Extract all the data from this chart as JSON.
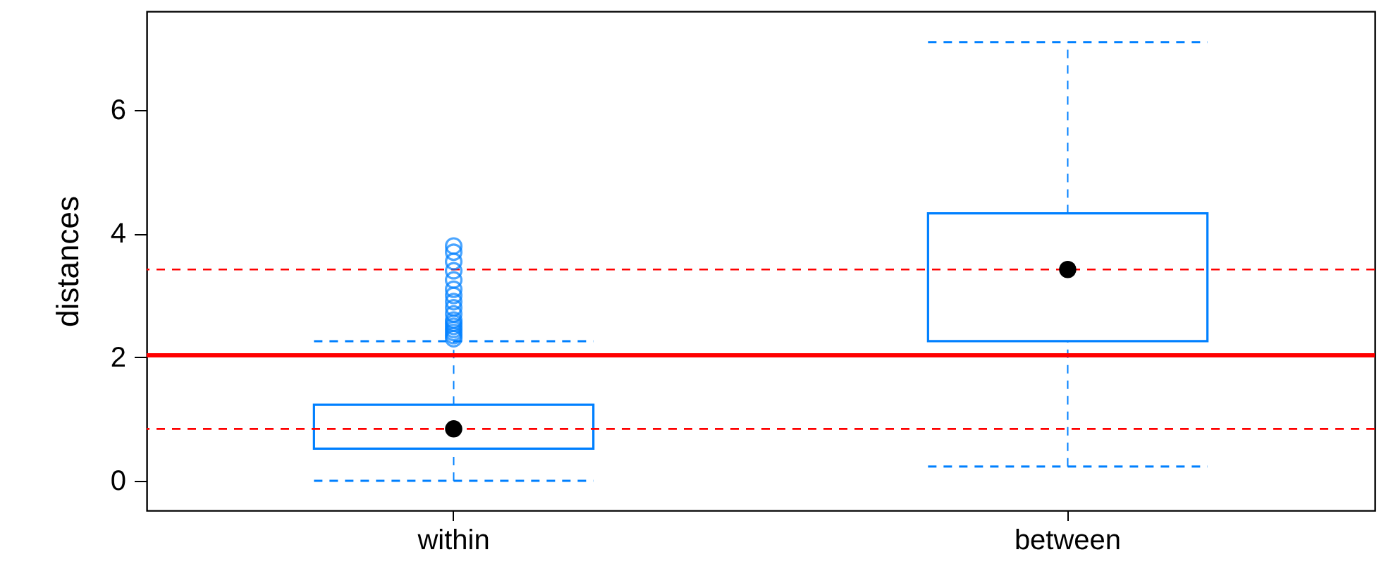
{
  "chart_data": {
    "type": "box",
    "ylabel": "distances",
    "categories": [
      "within",
      "between"
    ],
    "series": [
      {
        "color": "#0080ff",
        "line_style": "dashed",
        "boxes": [
          {
            "low": 0,
            "q1": 0.52,
            "median": 0.84,
            "q3": 1.23,
            "high": 2.26,
            "outliers": [
              2.3,
              2.35,
              2.4,
              2.45,
              2.5,
              2.55,
              2.6,
              2.7,
              2.8,
              2.9,
              3.0,
              3.1,
              3.25,
              3.4,
              3.55,
              3.7,
              3.8
            ]
          },
          {
            "low": 0.23,
            "q1": 2.26,
            "median": 3.42,
            "q3": 4.33,
            "high": 7.1
          }
        ]
      }
    ],
    "ylim": [
      -0.48,
      7.6
    ],
    "yticks": [
      0,
      2,
      4,
      6
    ],
    "ref_lines": [
      {
        "axis": "y",
        "value": 2.03,
        "color": "#ff0000",
        "line_style": "solid"
      },
      {
        "axis": "y",
        "value": 3.42,
        "color": "#ff0000",
        "line_style": "dashed"
      },
      {
        "axis": "y",
        "value": 0.84,
        "color": "#ff0000",
        "line_style": "dashed"
      }
    ],
    "grid": false
  }
}
